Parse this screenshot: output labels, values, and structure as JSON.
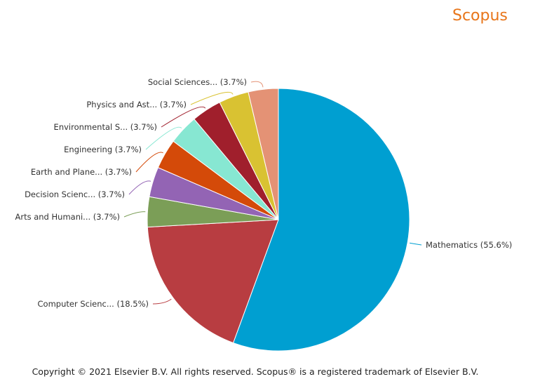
{
  "brand": {
    "name": "Scopus",
    "color": "#e8751a"
  },
  "chart_data": {
    "type": "pie",
    "start_angle_deg": 0,
    "direction": "clockwise",
    "slices": [
      {
        "label": "Mathematics (55.6%)",
        "value": 55.6,
        "color": "#009fd1"
      },
      {
        "label": "Computer Scienc... (18.5%)",
        "value": 18.5,
        "color": "#b83d41"
      },
      {
        "label": "Arts and Humani... (3.7%)",
        "value": 3.7,
        "color": "#7b9e57"
      },
      {
        "label": "Decision Scienc... (3.7%)",
        "value": 3.7,
        "color": "#9364b4"
      },
      {
        "label": "Earth and Plane... (3.7%)",
        "value": 3.7,
        "color": "#d44a09"
      },
      {
        "label": "Engineering (3.7%)",
        "value": 3.7,
        "color": "#87e7d2"
      },
      {
        "label": "Environmental S... (3.7%)",
        "value": 3.7,
        "color": "#a01f2c"
      },
      {
        "label": "Physics and Ast... (3.7%)",
        "value": 3.7,
        "color": "#d9c232"
      },
      {
        "label": "Social Sciences... (3.7%)",
        "value": 3.7,
        "color": "#e49275"
      }
    ]
  },
  "footer": {
    "copyright": "Copyright © 2021 Elsevier B.V. All rights reserved. Scopus® is a registered trademark of Elsevier B.V."
  }
}
